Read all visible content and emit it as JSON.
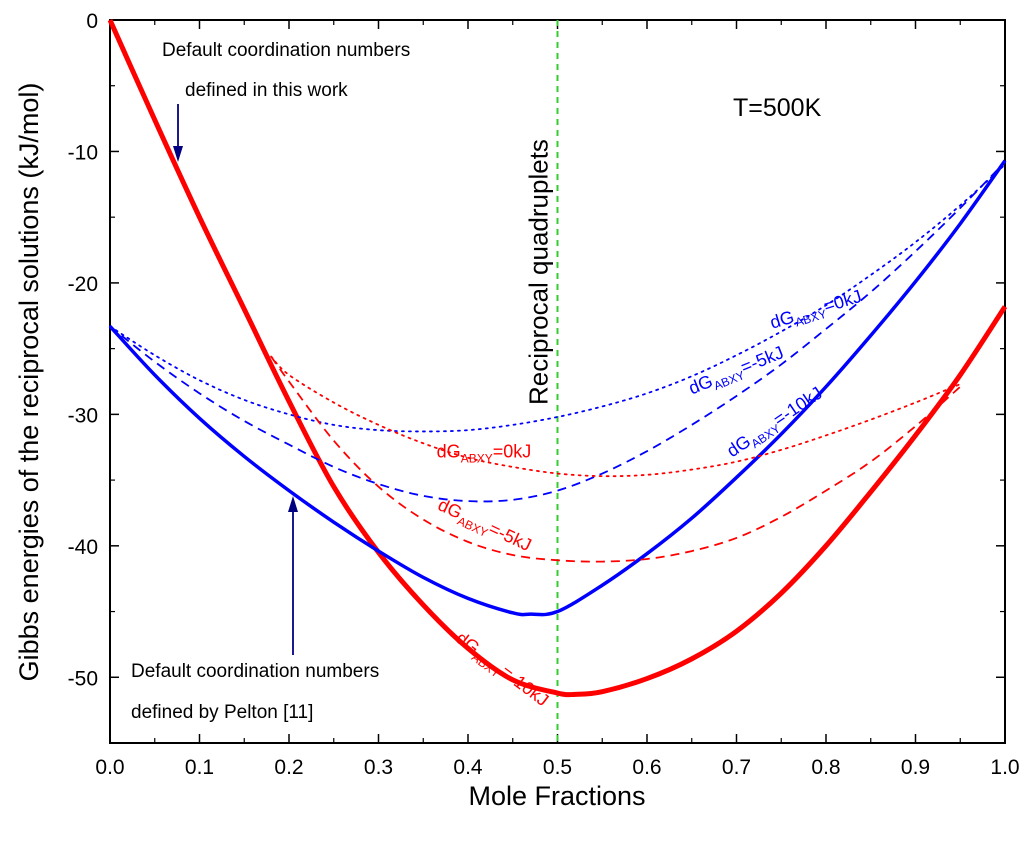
{
  "chart_data": {
    "type": "line",
    "xlabel": "Mole Fractions",
    "ylabel": "Gibbs energies of the reciprocal solutions (kJ/mol)",
    "xlim": [
      0.0,
      1.0
    ],
    "ylim": [
      -55,
      0
    ],
    "xticks": [
      0.0,
      0.1,
      0.2,
      0.3,
      0.4,
      0.5,
      0.6,
      0.7,
      0.8,
      0.9,
      1.0
    ],
    "xtick_labels": [
      "0.0",
      "0.1",
      "0.2",
      "0.3",
      "0.4",
      "0.5",
      "0.6",
      "0.7",
      "0.8",
      "0.9",
      "1.0"
    ],
    "yticks": [
      0,
      -10,
      -20,
      -30,
      -40,
      -50
    ],
    "ytick_labels": [
      "0",
      "-10",
      "-20",
      "-30",
      "-40",
      "-50"
    ],
    "grid": false,
    "series": [
      {
        "color": "#ff0000",
        "style": "solid",
        "width": 5,
        "x": [
          0.0,
          0.05,
          0.1,
          0.15,
          0.2,
          0.25,
          0.3,
          0.35,
          0.4,
          0.45,
          0.5,
          0.52,
          0.55,
          0.6,
          0.65,
          0.7,
          0.75,
          0.8,
          0.85,
          0.9,
          0.95,
          1.0
        ],
        "y": [
          0.0,
          -7.6,
          -15.0,
          -22.0,
          -29.0,
          -35.5,
          -40.5,
          -44.5,
          -47.8,
          -50.2,
          -51.2,
          -51.3,
          -51.1,
          -50.1,
          -48.6,
          -46.5,
          -43.6,
          -40.0,
          -35.9,
          -31.6,
          -27.0,
          -21.8
        ]
      },
      {
        "color": "#0000ff",
        "style": "solid",
        "width": 3.5,
        "x": [
          0.0,
          0.05,
          0.1,
          0.15,
          0.2,
          0.25,
          0.3,
          0.35,
          0.4,
          0.45,
          0.47,
          0.5,
          0.55,
          0.6,
          0.65,
          0.7,
          0.75,
          0.8,
          0.85,
          0.9,
          0.95,
          1.0
        ],
        "y": [
          -23.3,
          -27.0,
          -30.3,
          -33.2,
          -35.8,
          -38.2,
          -40.4,
          -42.4,
          -44.0,
          -45.1,
          -45.2,
          -45.0,
          -43.0,
          -40.6,
          -37.9,
          -34.8,
          -31.5,
          -27.9,
          -24.0,
          -19.9,
          -15.5,
          -10.7
        ]
      },
      {
        "color": "#0000ff",
        "style": "dotted",
        "width": 1.8,
        "x": [
          0.0,
          0.05,
          0.1,
          0.15,
          0.2,
          0.25,
          0.3,
          0.35,
          0.4,
          0.45,
          0.5,
          0.55,
          0.6,
          0.65,
          0.7,
          0.75,
          0.8,
          0.85,
          0.9,
          0.95,
          1.0
        ],
        "y": [
          -23.3,
          -25.5,
          -27.4,
          -28.9,
          -30.0,
          -30.8,
          -31.2,
          -31.3,
          -31.2,
          -30.8,
          -30.2,
          -29.4,
          -28.4,
          -27.1,
          -25.5,
          -23.7,
          -21.7,
          -19.4,
          -16.9,
          -14.1,
          -11.0
        ]
      },
      {
        "color": "#0000ff",
        "style": "dashed",
        "width": 1.8,
        "x": [
          0.0,
          0.05,
          0.1,
          0.15,
          0.2,
          0.25,
          0.3,
          0.35,
          0.4,
          0.45,
          0.5,
          0.55,
          0.6,
          0.65,
          0.7,
          0.75,
          0.8,
          0.85,
          0.9,
          0.95,
          1.0
        ],
        "y": [
          -23.3,
          -26.0,
          -28.4,
          -30.5,
          -32.3,
          -34.0,
          -35.3,
          -36.2,
          -36.6,
          -36.5,
          -35.8,
          -34.5,
          -32.8,
          -30.8,
          -28.6,
          -26.2,
          -23.5,
          -20.7,
          -17.6,
          -14.3,
          -10.8
        ]
      },
      {
        "color": "#ff0000",
        "style": "dotted",
        "width": 1.8,
        "x": [
          0.18,
          0.2,
          0.25,
          0.3,
          0.35,
          0.4,
          0.45,
          0.5,
          0.55,
          0.6,
          0.65,
          0.7,
          0.75,
          0.8,
          0.85,
          0.9,
          0.95
        ],
        "y": [
          -25.6,
          -27.0,
          -29.1,
          -30.8,
          -32.2,
          -33.3,
          -34.0,
          -34.5,
          -34.7,
          -34.6,
          -34.2,
          -33.6,
          -32.7,
          -31.6,
          -30.4,
          -29.1,
          -27.7
        ]
      },
      {
        "color": "#ff0000",
        "style": "dashed",
        "width": 1.8,
        "x": [
          0.18,
          0.2,
          0.25,
          0.3,
          0.35,
          0.4,
          0.45,
          0.5,
          0.55,
          0.6,
          0.65,
          0.7,
          0.75,
          0.8,
          0.85,
          0.9,
          0.95
        ],
        "y": [
          -25.6,
          -27.5,
          -32.0,
          -35.5,
          -38.0,
          -39.7,
          -40.7,
          -41.1,
          -41.2,
          -41.0,
          -40.4,
          -39.4,
          -37.8,
          -35.8,
          -33.6,
          -30.9,
          -27.9
        ]
      }
    ],
    "series_labels": [
      {
        "text": "dG",
        "sub": "ABXY",
        "suffix": "=0kJ",
        "color": "#0000ff",
        "x": 0.74,
        "y": -23.5,
        "angle": -17
      },
      {
        "text": "dG",
        "sub": "ABXY",
        "suffix": "=-5kJ",
        "color": "#0000ff",
        "x": 0.65,
        "y": -28.5,
        "angle": -22
      },
      {
        "text": "dG",
        "sub": "ABXY",
        "suffix": "=-10kJ",
        "color": "#0000ff",
        "x": 0.695,
        "y": -33.3,
        "angle": -34
      },
      {
        "text": "dG",
        "sub": "ABXY",
        "suffix": "=0kJ",
        "color": "#ff0000",
        "x": 0.365,
        "y": -33.3,
        "angle": 0
      },
      {
        "text": "dG",
        "sub": "ABXY",
        "suffix": "=-5kJ",
        "color": "#ff0000",
        "x": 0.365,
        "y": -37.2,
        "angle": 25
      },
      {
        "text": "dG",
        "sub": "ABXY",
        "suffix": "=-10kJ",
        "color": "#ff0000",
        "x": 0.385,
        "y": -47.2,
        "angle": 37
      }
    ],
    "annotations": {
      "top_line1": "Default coordination numbers",
      "top_line2": "defined in this work",
      "bottom_line1": "Default coordination numbers",
      "bottom_line2": "defined by Pelton [11]",
      "temperature": "T=500K",
      "reference_line_label": "Reciprocal quadruplets",
      "reference_line_x": 0.5
    }
  }
}
